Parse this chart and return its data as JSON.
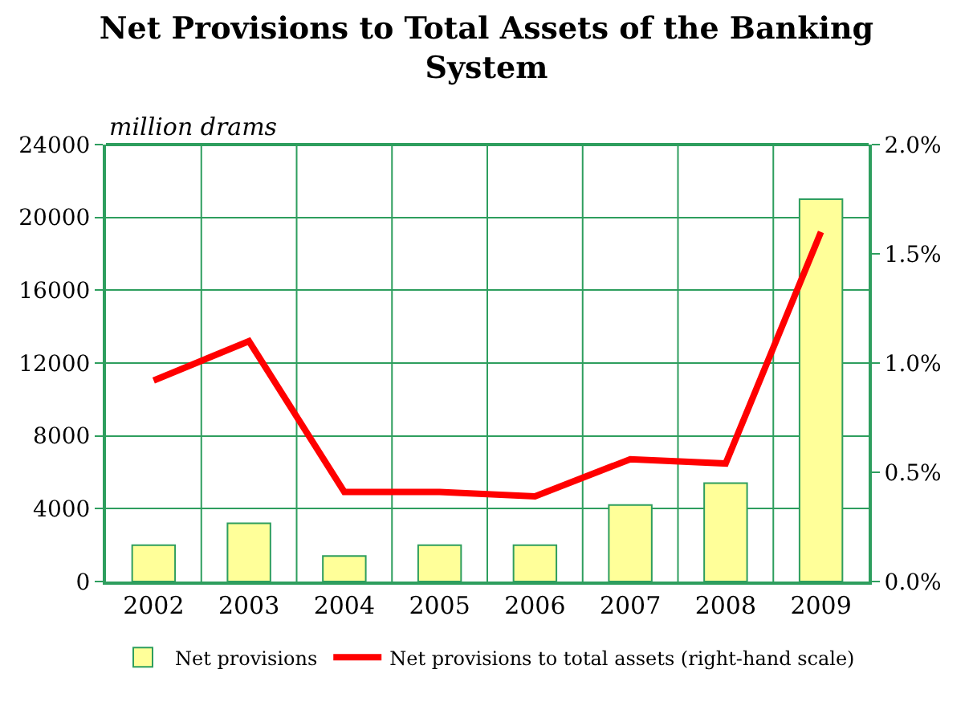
{
  "chart_data": {
    "type": "bar",
    "title": "Net Provisions to Total Assets of the Banking System",
    "ylabel": "million drams",
    "categories": [
      "2002",
      "2003",
      "2004",
      "2005",
      "2006",
      "2007",
      "2008",
      "2009"
    ],
    "series": [
      {
        "name": "Net provisions",
        "color": "#ffff99",
        "values": [
          2000,
          3200,
          1400,
          2000,
          2000,
          4200,
          5400,
          21000
        ]
      },
      {
        "name": "Net provisions to total assets (right-hand scale)",
        "type": "line",
        "axis": "y2",
        "color": "#ff0000",
        "marker": "none",
        "line_style": "solid",
        "values": [
          0.92,
          1.1,
          0.41,
          0.41,
          0.39,
          0.56,
          0.54,
          1.6
        ]
      }
    ],
    "ylim": [
      0,
      24000
    ],
    "yticks": [
      0,
      4000,
      8000,
      12000,
      16000,
      20000,
      24000
    ],
    "y2lim": [
      0,
      2.0
    ],
    "y2ticks": [
      {
        "value": 0,
        "label": "0.0%"
      },
      {
        "value": 0.5,
        "label": "0.5%"
      },
      {
        "value": 1.0,
        "label": "1.0%"
      },
      {
        "value": 1.5,
        "label": "1.5%"
      },
      {
        "value": 2.0,
        "label": "2.0%"
      }
    ],
    "grid": true,
    "legend": "bottom"
  }
}
